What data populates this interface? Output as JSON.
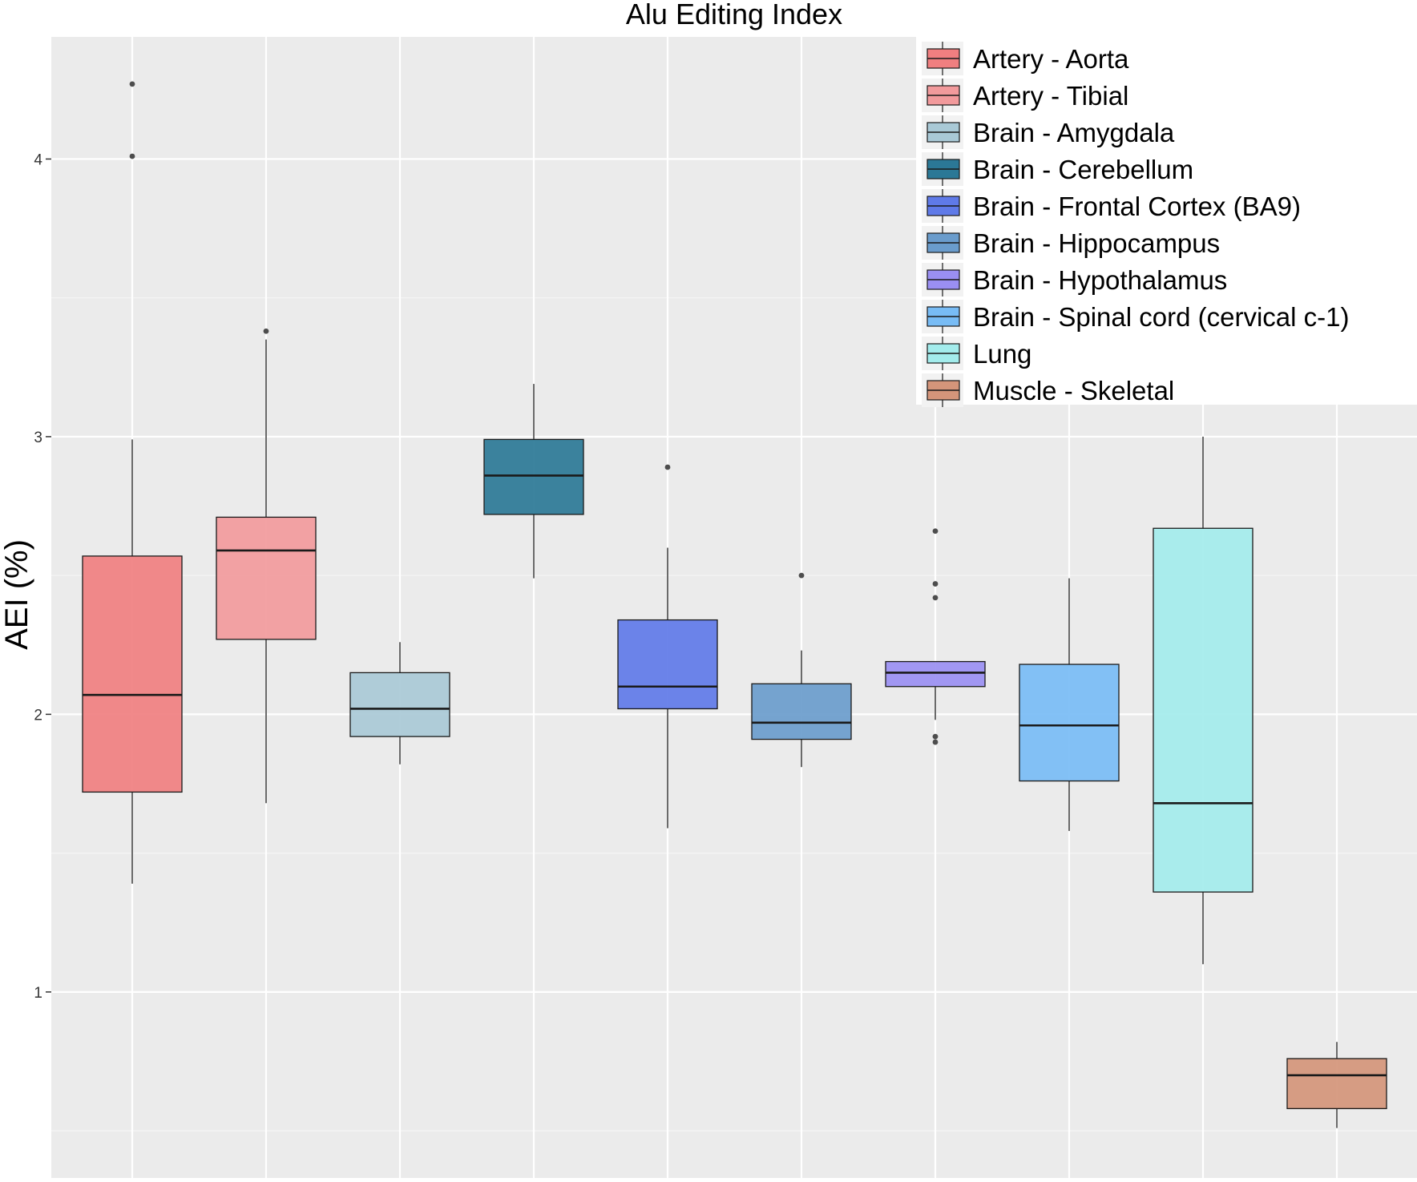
{
  "chart_data": {
    "type": "box",
    "title": "Alu Editing Index",
    "xlabel": "",
    "ylabel": "AEI (%)",
    "ylim": [
      0.33,
      4.44
    ],
    "y_ticks": [
      1,
      2,
      3,
      4
    ],
    "y_tick_labels": [
      "1",
      "2",
      "3",
      "4"
    ],
    "legend": {
      "position": "top-right",
      "entries": [
        "Artery - Aorta",
        "Artery - Tibial",
        "Brain - Amygdala",
        "Brain - Cerebellum",
        "Brain - Frontal Cortex (BA9)",
        "Brain - Hippocampus",
        "Brain - Hypothalamus",
        "Brain - Spinal cord (cervical c-1)",
        "Lung",
        "Muscle - Skeletal"
      ]
    },
    "series": [
      {
        "name": "Artery - Aorta",
        "color": "#f07f80",
        "min": 1.39,
        "q1": 1.72,
        "median": 2.07,
        "q3": 2.57,
        "max": 2.99,
        "outliers": [
          4.01,
          4.27
        ]
      },
      {
        "name": "Artery - Tibial",
        "color": "#f29a9c",
        "min": 1.68,
        "q1": 2.27,
        "median": 2.59,
        "q3": 2.71,
        "max": 3.35,
        "outliers": [
          3.38
        ]
      },
      {
        "name": "Brain - Amygdala",
        "color": "#a9c9d6",
        "min": 1.82,
        "q1": 1.92,
        "median": 2.02,
        "q3": 2.15,
        "max": 2.26,
        "outliers": []
      },
      {
        "name": "Brain - Cerebellum",
        "color": "#2b7896",
        "min": 2.49,
        "q1": 2.72,
        "median": 2.86,
        "q3": 2.99,
        "max": 3.19,
        "outliers": []
      },
      {
        "name": "Brain - Frontal Cortex (BA9)",
        "color": "#5f7ae8",
        "min": 1.59,
        "q1": 2.02,
        "median": 2.1,
        "q3": 2.34,
        "max": 2.6,
        "outliers": [
          2.89
        ]
      },
      {
        "name": "Brain - Hippocampus",
        "color": "#6a9ccc",
        "min": 1.81,
        "q1": 1.91,
        "median": 1.97,
        "q3": 2.11,
        "max": 2.23,
        "outliers": [
          2.5
        ]
      },
      {
        "name": "Brain - Hypothalamus",
        "color": "#9a8ff2",
        "min": 1.98,
        "q1": 2.1,
        "median": 2.15,
        "q3": 2.19,
        "max": 2.19,
        "outliers": [
          2.66,
          2.47,
          2.42,
          1.92,
          1.9
        ]
      },
      {
        "name": "Brain - Spinal cord (cervical c-1)",
        "color": "#78bcf5",
        "min": 1.58,
        "q1": 1.76,
        "median": 1.96,
        "q3": 2.18,
        "max": 2.49,
        "outliers": []
      },
      {
        "name": "Lung",
        "color": "#a3ecec",
        "min": 1.1,
        "q1": 1.36,
        "median": 1.68,
        "q3": 2.67,
        "max": 3.0,
        "outliers": []
      },
      {
        "name": "Muscle - Skeletal",
        "color": "#d4957a",
        "min": 0.51,
        "q1": 0.58,
        "median": 0.7,
        "q3": 0.76,
        "max": 0.82,
        "outliers": []
      }
    ]
  }
}
